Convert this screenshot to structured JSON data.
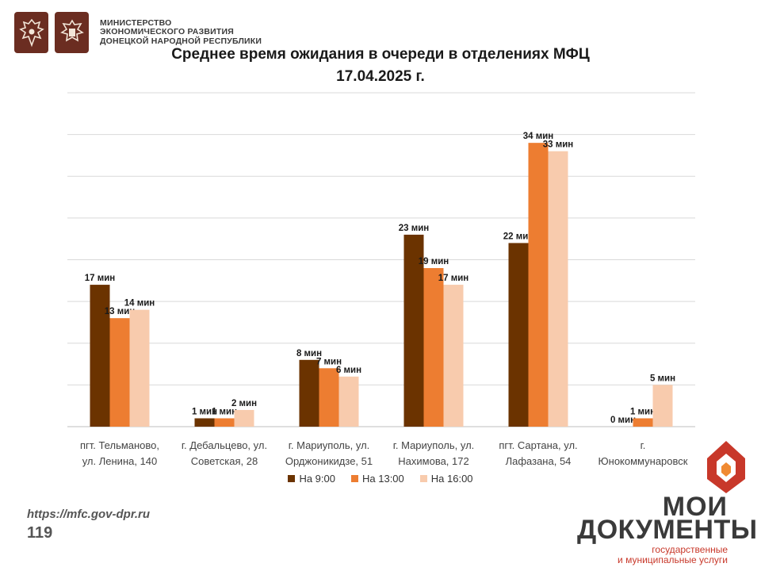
{
  "header": {
    "ministry_lines": [
      "МИНИСТЕРСТВО",
      "ЭКОНОМИЧЕСКОГО РАЗВИТИЯ",
      "ДОНЕЦКОЙ НАРОДНОЙ РЕСПУБЛИКИ"
    ]
  },
  "title_line1": "Среднее время ожидания в очереди в отделениях МФЦ",
  "title_line2": "17.04.2025   г.",
  "chart_data": {
    "type": "bar",
    "title": "Среднее время ожидания в очереди в отделениях МФЦ 17.04.2025 г.",
    "categories": [
      [
        "пгт. Тельманово,",
        "ул. Ленина, 140"
      ],
      [
        "г. Дебальцево, ул.",
        "Советская, 28"
      ],
      [
        "г. Мариуполь, ул.",
        "Орджоникидзе, 51"
      ],
      [
        "г. Мариуполь, ул.",
        "Нахимова, 172"
      ],
      [
        "пгт. Сартана, ул.",
        "Лафазана, 54"
      ],
      [
        "г.",
        "Юнокоммунаровск"
      ]
    ],
    "series": [
      {
        "name": "На 9:00",
        "color": "#6b3300",
        "values": [
          17,
          1,
          8,
          23,
          22,
          0
        ],
        "labels": [
          "17 мин",
          "1 мин",
          "8 мин",
          "23 мин",
          "22 мин",
          "0 мин"
        ]
      },
      {
        "name": "На 13:00",
        "color": "#ed7d31",
        "values": [
          13,
          1,
          7,
          19,
          34,
          1
        ],
        "labels": [
          "13 мин",
          "1 мин",
          "7  мин",
          "19 мин",
          "34 мин",
          "1 мин"
        ]
      },
      {
        "name": "На 16:00",
        "color": "#f8cbad",
        "values": [
          14,
          2,
          6,
          17,
          33,
          5
        ],
        "labels": [
          "14 мин",
          "2 мин",
          "6 мин",
          "17 мин",
          "33 мин",
          "5 мин"
        ]
      }
    ],
    "ylim": [
      0,
      40
    ],
    "grid": true,
    "legend": "bottom"
  },
  "footer": {
    "url": "https://mfc.gov-dpr.ru",
    "page": "119",
    "brand_line1": "МОИ",
    "brand_line2": "ДОКУМЕНТЫ",
    "brand_line3": "государственные",
    "brand_line4": "и муниципальные услуги"
  }
}
